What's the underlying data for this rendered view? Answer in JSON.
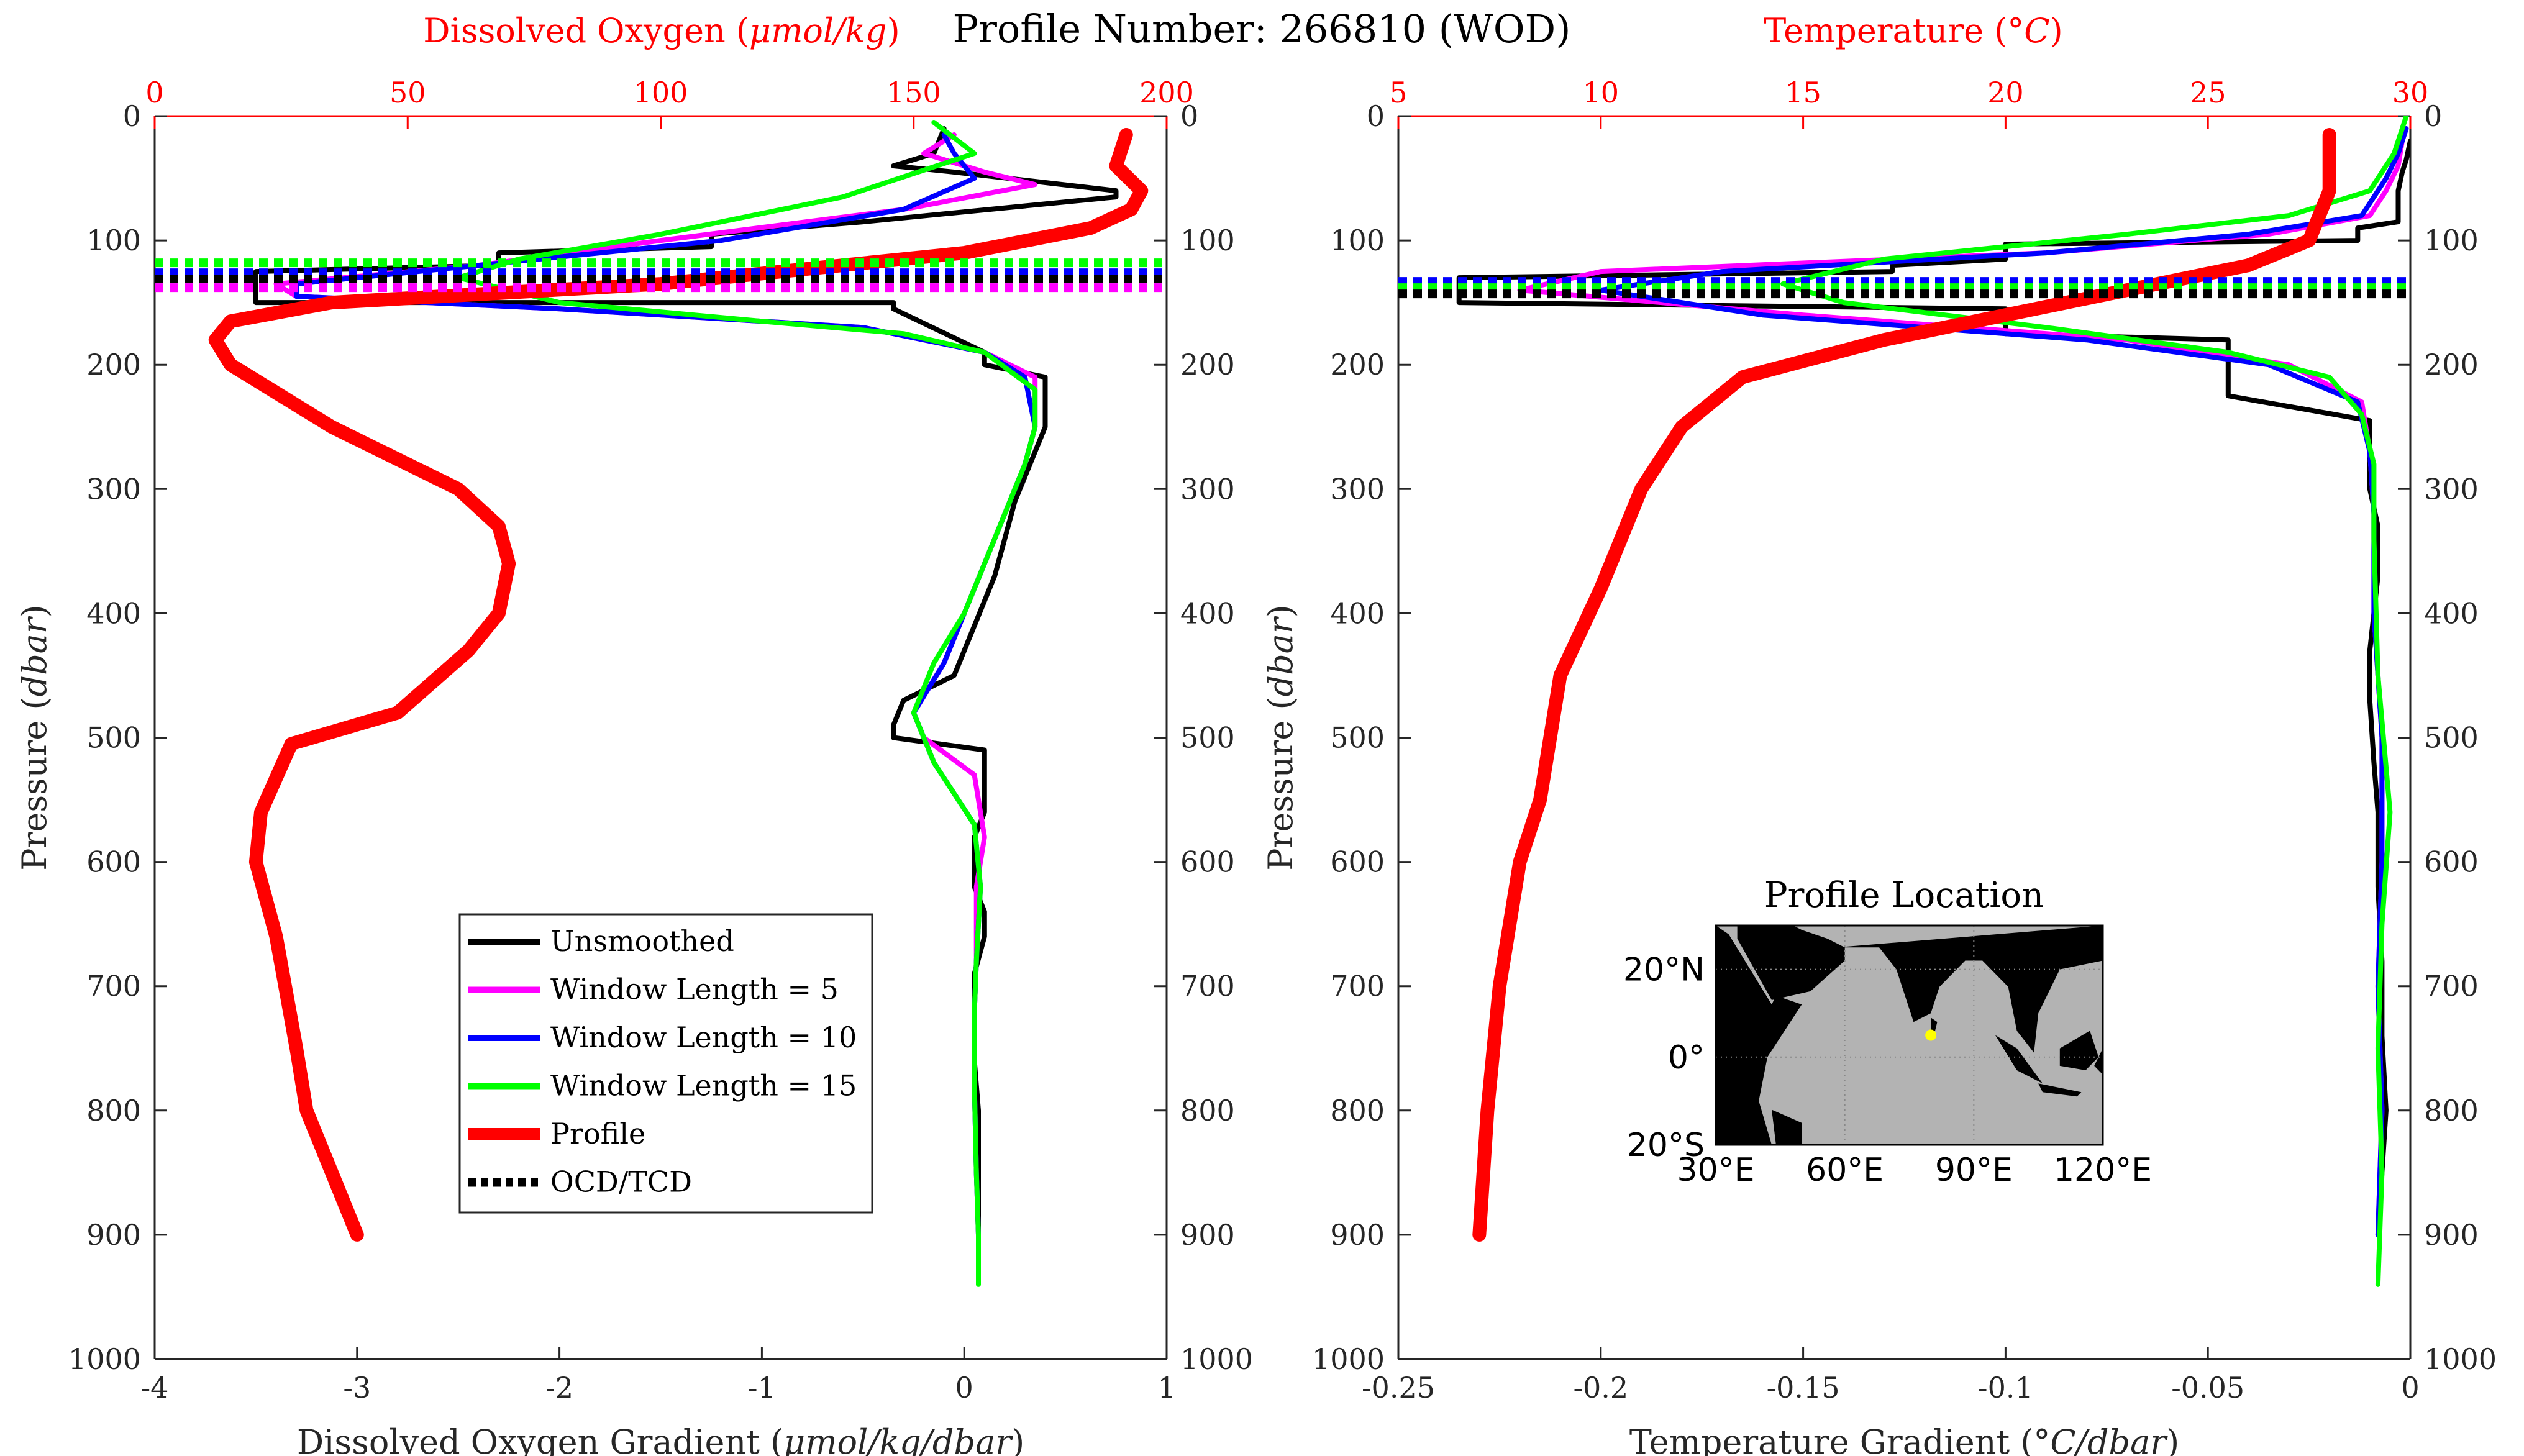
{
  "figure_title": "Profile Number: 266810 (WOD)",
  "colors": {
    "unsmoothed": "#000000",
    "window5": "#ff00ff",
    "window10": "#0000ff",
    "window15": "#00ff00",
    "profile": "#ff0000",
    "top_axis": "#ff0000",
    "land": "#000000",
    "ocean": "#b3b3b3",
    "location_marker": "#ffff00"
  },
  "legend": {
    "placement": "inside left panel, lower center",
    "entries": [
      {
        "label": "Unsmoothed",
        "series": "unsmoothed",
        "style": "solid"
      },
      {
        "label": "Window Length = 5",
        "series": "window5",
        "style": "solid"
      },
      {
        "label": "Window Length = 10",
        "series": "window10",
        "style": "solid"
      },
      {
        "label": "Window Length = 15",
        "series": "window15",
        "style": "solid"
      },
      {
        "label": "Profile",
        "series": "profile",
        "style": "solid-thick"
      },
      {
        "label": "OCD/TCD",
        "series": "unsmoothed",
        "style": "dotted"
      }
    ]
  },
  "chart_data": [
    {
      "type": "line",
      "title": "",
      "xlabel": "Dissolved Oxygen Gradient (μmol/kg/dbar)",
      "xlabel_top": "Dissolved Oxygen (μmol/kg)",
      "ylabel": "Pressure (dbar)",
      "xlim": [
        -4,
        1
      ],
      "xticks": [
        "-4",
        "-3",
        "-2",
        "-1",
        "0",
        "1"
      ],
      "xlim_top": [
        0,
        200
      ],
      "xticks_top": [
        "0",
        "50",
        "100",
        "150",
        "200"
      ],
      "ylim": [
        0,
        1000
      ],
      "y_reversed": true,
      "yticks": [
        "0",
        "100",
        "200",
        "300",
        "400",
        "500",
        "600",
        "700",
        "800",
        "900",
        "1000"
      ],
      "grid": false,
      "series": [
        {
          "key": "unsmoothed",
          "axis": "bottom",
          "x": [
            -0.1,
            -0.15,
            -0.35,
            -0.05,
            0.75,
            0.75,
            -0.5,
            -1.25,
            -1.25,
            -2.3,
            -2.3,
            -3.5,
            -3.5,
            -0.35,
            -0.35,
            0.1,
            0.1,
            0.4,
            0.4,
            0.35,
            0.3,
            0.25,
            0.2,
            0.15,
            0.1,
            0.05,
            0.0,
            -0.05,
            -0.3,
            -0.35,
            -0.35,
            0.1,
            0.1,
            0.05,
            0.05,
            0.1,
            0.1,
            0.05,
            0.05,
            0.05,
            0.07,
            0.07,
            0.07
          ],
          "y": [
            10,
            30,
            40,
            45,
            60,
            65,
            85,
            95,
            105,
            110,
            120,
            125,
            150,
            150,
            155,
            190,
            200,
            210,
            250,
            270,
            290,
            310,
            340,
            370,
            390,
            410,
            430,
            450,
            470,
            490,
            500,
            510,
            560,
            580,
            620,
            640,
            660,
            690,
            720,
            760,
            800,
            850,
            900
          ]
        },
        {
          "key": "window5",
          "axis": "bottom",
          "x": [
            -0.05,
            -0.2,
            0.1,
            0.35,
            -0.3,
            -1.5,
            -2.4,
            -3.4,
            -3.3,
            -2.0,
            -0.5,
            0.1,
            0.35,
            0.35,
            0.3,
            0.2,
            0.1,
            0.0,
            -0.1,
            -0.25,
            -0.2,
            0.05,
            0.1,
            0.06,
            0.06,
            0.05,
            0.05,
            0.06,
            0.07
          ],
          "y": [
            15,
            30,
            45,
            55,
            75,
            100,
            120,
            135,
            145,
            155,
            170,
            190,
            210,
            250,
            280,
            320,
            360,
            400,
            440,
            480,
            500,
            530,
            580,
            620,
            680,
            720,
            780,
            850,
            900
          ]
        },
        {
          "key": "window10",
          "axis": "bottom",
          "x": [
            -0.1,
            -0.05,
            0.05,
            -0.3,
            -1.2,
            -2.4,
            -3.3,
            -3.3,
            -2.0,
            -0.5,
            0.1,
            0.3,
            0.35,
            0.3,
            0.2,
            0.1,
            0.0,
            -0.1,
            -0.25,
            -0.15,
            0.05,
            0.08,
            0.06,
            0.05,
            0.05,
            0.06,
            0.07
          ],
          "y": [
            15,
            30,
            50,
            75,
            100,
            120,
            135,
            145,
            155,
            170,
            190,
            210,
            250,
            280,
            320,
            360,
            400,
            440,
            480,
            520,
            570,
            620,
            680,
            720,
            780,
            850,
            900
          ]
        },
        {
          "key": "window15",
          "axis": "bottom",
          "x": [
            -0.15,
            0.05,
            -0.6,
            -1.5,
            -2.2,
            -2.5,
            -2.0,
            -1.0,
            -0.3,
            0.1,
            0.35,
            0.35,
            0.3,
            0.2,
            0.1,
            0.0,
            -0.15,
            -0.25,
            -0.15,
            0.05,
            0.08,
            0.06,
            0.05,
            0.05,
            0.06,
            0.07,
            0.07
          ],
          "y": [
            5,
            30,
            65,
            95,
            115,
            130,
            150,
            165,
            175,
            190,
            220,
            250,
            280,
            320,
            360,
            400,
            440,
            480,
            520,
            570,
            620,
            680,
            720,
            780,
            850,
            900,
            940
          ]
        },
        {
          "key": "profile",
          "axis": "top",
          "x": [
            192,
            190,
            195,
            193,
            185,
            160,
            100,
            35,
            15,
            12,
            15,
            35,
            60,
            68,
            70,
            68,
            62,
            48,
            27,
            21,
            20,
            24,
            28,
            30,
            40
          ],
          "y": [
            15,
            40,
            60,
            75,
            90,
            110,
            135,
            150,
            165,
            180,
            200,
            250,
            300,
            330,
            360,
            400,
            430,
            480,
            505,
            560,
            600,
            660,
            750,
            800,
            900
          ]
        }
      ],
      "reference_lines": [
        {
          "key": "window15",
          "y": 118,
          "style": "dotted"
        },
        {
          "key": "window10",
          "y": 126,
          "style": "dotted"
        },
        {
          "key": "unsmoothed",
          "y": 131,
          "style": "dotted"
        },
        {
          "key": "window5",
          "y": 138,
          "style": "dotted"
        }
      ]
    },
    {
      "type": "line",
      "title": "",
      "xlabel": "Temperature Gradient (°C/dbar)",
      "xlabel_top": "Temperature (°C)",
      "ylabel": "Pressure (dbar)",
      "xlim": [
        -0.25,
        0
      ],
      "xticks": [
        "-0.25",
        "-0.2",
        "-0.15",
        "-0.1",
        "-0.05",
        "0"
      ],
      "xlim_top": [
        5,
        30
      ],
      "xticks_top": [
        "5",
        "10",
        "15",
        "20",
        "25",
        "30"
      ],
      "ylim": [
        0,
        1000
      ],
      "y_reversed": true,
      "yticks": [
        "0",
        "100",
        "200",
        "300",
        "400",
        "500",
        "600",
        "700",
        "800",
        "900",
        "1000"
      ],
      "grid": false,
      "series": [
        {
          "key": "unsmoothed",
          "axis": "bottom",
          "x": [
            0.0,
            -0.001,
            -0.002,
            -0.003,
            -0.003,
            -0.013,
            -0.013,
            -0.1,
            -0.1,
            -0.128,
            -0.128,
            -0.235,
            -0.235,
            -0.1,
            -0.1,
            -0.045,
            -0.045,
            -0.01,
            -0.01,
            -0.008,
            -0.008,
            -0.01,
            -0.01,
            -0.009,
            -0.008,
            -0.008,
            -0.007,
            -0.007,
            -0.006,
            -0.007,
            -0.008
          ],
          "y": [
            20,
            35,
            45,
            60,
            85,
            90,
            100,
            103,
            115,
            120,
            125,
            130,
            150,
            155,
            175,
            180,
            225,
            245,
            300,
            330,
            370,
            430,
            470,
            520,
            560,
            620,
            680,
            740,
            800,
            850,
            900
          ]
        },
        {
          "key": "window5",
          "axis": "bottom",
          "x": [
            -0.002,
            -0.003,
            -0.006,
            -0.01,
            -0.035,
            -0.09,
            -0.2,
            -0.22,
            -0.15,
            -0.07,
            -0.03,
            -0.012,
            -0.01,
            -0.009,
            -0.009,
            -0.007,
            -0.007,
            -0.008,
            -0.007,
            -0.008
          ],
          "y": [
            20,
            40,
            60,
            80,
            95,
            110,
            125,
            140,
            160,
            180,
            200,
            230,
            270,
            320,
            400,
            500,
            600,
            700,
            800,
            900
          ]
        },
        {
          "key": "window10",
          "axis": "bottom",
          "x": [
            -0.001,
            -0.003,
            -0.006,
            -0.012,
            -0.04,
            -0.09,
            -0.17,
            -0.2,
            -0.16,
            -0.08,
            -0.035,
            -0.013,
            -0.01,
            -0.009,
            -0.009,
            -0.007,
            -0.007,
            -0.008,
            -0.007,
            -0.008
          ],
          "y": [
            10,
            30,
            50,
            80,
            95,
            110,
            125,
            140,
            160,
            180,
            200,
            230,
            270,
            320,
            400,
            500,
            600,
            700,
            800,
            900
          ]
        },
        {
          "key": "window15",
          "axis": "bottom",
          "x": [
            -0.001,
            -0.004,
            -0.01,
            -0.03,
            -0.07,
            -0.13,
            -0.155,
            -0.14,
            -0.09,
            -0.045,
            -0.02,
            -0.012,
            -0.009,
            -0.009,
            -0.008,
            -0.005,
            -0.007,
            -0.008,
            -0.007,
            -0.008
          ],
          "y": [
            0,
            30,
            60,
            80,
            95,
            115,
            135,
            150,
            170,
            190,
            210,
            240,
            280,
            340,
            450,
            560,
            650,
            750,
            850,
            940
          ]
        },
        {
          "key": "profile",
          "axis": "top",
          "x": [
            28,
            28,
            27.5,
            26,
            23,
            20,
            17,
            13.5,
            12,
            11,
            10,
            9,
            8.5,
            8,
            7.5,
            7.2,
            7
          ],
          "y": [
            15,
            60,
            100,
            120,
            140,
            160,
            180,
            210,
            250,
            300,
            380,
            450,
            550,
            600,
            700,
            800,
            900
          ]
        }
      ],
      "reference_lines": [
        {
          "key": "window10",
          "y": 133,
          "style": "dotted"
        },
        {
          "key": "window15",
          "y": 138,
          "style": "dotted"
        },
        {
          "key": "unsmoothed",
          "y": 143,
          "style": "dotted"
        }
      ]
    }
  ],
  "inset_map": {
    "title": "Profile Location",
    "lon_ticks": [
      "30°E",
      "60°E",
      "90°E",
      "120°E"
    ],
    "lat_ticks": [
      "20°N",
      "0°",
      "20°S"
    ],
    "lon_range": [
      30,
      120
    ],
    "lat_range": [
      -20,
      30
    ],
    "marker": {
      "lon": 80,
      "lat": 5
    },
    "land_polygons": [
      [
        [
          30,
          30
        ],
        [
          30,
          -20
        ],
        [
          43,
          -20
        ],
        [
          40,
          -10
        ],
        [
          42,
          0
        ],
        [
          50,
          12
        ],
        [
          44,
          14
        ],
        [
          43,
          12
        ],
        [
          38,
          20
        ],
        [
          33,
          28
        ]
      ],
      [
        [
          35,
          30
        ],
        [
          35,
          27
        ],
        [
          43,
          13
        ],
        [
          52,
          15
        ],
        [
          60,
          22
        ],
        [
          60,
          25
        ],
        [
          56,
          27
        ],
        [
          50,
          29
        ],
        [
          48,
          30
        ]
      ],
      [
        [
          58,
          25
        ],
        [
          68,
          25
        ],
        [
          72,
          20
        ],
        [
          76,
          8
        ],
        [
          80,
          10
        ],
        [
          82,
          16
        ],
        [
          88,
          22
        ],
        [
          92,
          22
        ],
        [
          98,
          16
        ],
        [
          100,
          6
        ],
        [
          104,
          1
        ],
        [
          105,
          10
        ],
        [
          110,
          20
        ],
        [
          120,
          22
        ],
        [
          120,
          30
        ]
      ],
      [
        [
          80,
          9
        ],
        [
          81.5,
          8
        ],
        [
          81,
          6
        ],
        [
          80,
          6
        ]
      ],
      [
        [
          95,
          5
        ],
        [
          100,
          2
        ],
        [
          106,
          -6
        ],
        [
          100,
          -3
        ]
      ],
      [
        [
          105,
          -6
        ],
        [
          115,
          -8
        ],
        [
          114,
          -9
        ],
        [
          106,
          -8
        ]
      ],
      [
        [
          110,
          2
        ],
        [
          117,
          6
        ],
        [
          119,
          0
        ],
        [
          116,
          -3
        ],
        [
          110,
          -2
        ]
      ],
      [
        [
          120,
          2
        ],
        [
          118,
          -2
        ],
        [
          120,
          -4
        ]
      ],
      [
        [
          43,
          -12
        ],
        [
          50,
          -15
        ],
        [
          50,
          -20
        ],
        [
          44,
          -20
        ]
      ]
    ]
  }
}
